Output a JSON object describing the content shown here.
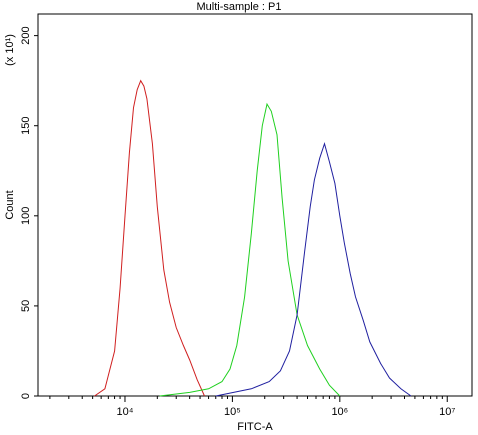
{
  "chart_data": {
    "type": "line",
    "title": "Multi-sample : P1",
    "xlabel": "FITC-A",
    "ylabel": "Count",
    "y_multiplier": "(x 10¹)",
    "xlog": true,
    "xlim": [
      1550,
      17000000
    ],
    "ylim": [
      0,
      212
    ],
    "xticks": [
      {
        "value": 10000,
        "label": "10⁴"
      },
      {
        "value": 100000,
        "label": "10⁵"
      },
      {
        "value": 1000000,
        "label": "10⁶"
      },
      {
        "value": 10000000,
        "label": "10⁷"
      }
    ],
    "yticks": [
      0,
      50,
      100,
      150,
      200
    ],
    "series": [
      {
        "color": "#d02020",
        "x": [
          5200,
          6500,
          8000,
          9000,
          10000,
          11000,
          12000,
          13000,
          14000,
          15000,
          16000,
          18000,
          20000,
          23000,
          26000,
          30000,
          35000,
          40000,
          47000,
          55000
        ],
        "values": [
          0,
          4,
          25,
          60,
          100,
          135,
          160,
          170,
          175,
          172,
          165,
          140,
          105,
          70,
          52,
          38,
          28,
          20,
          9,
          0
        ]
      },
      {
        "color": "#20d020",
        "x": [
          21000,
          40000,
          60000,
          80000,
          95000,
          110000,
          130000,
          150000,
          170000,
          190000,
          210000,
          230000,
          260000,
          290000,
          330000,
          400000,
          500000,
          650000,
          800000,
          1000000
        ],
        "values": [
          0,
          2,
          4,
          8,
          15,
          28,
          55,
          90,
          125,
          150,
          162,
          158,
          145,
          110,
          75,
          45,
          28,
          15,
          6,
          0
        ]
      },
      {
        "color": "#2020a0",
        "x": [
          70000,
          150000,
          220000,
          280000,
          340000,
          400000,
          470000,
          530000,
          580000,
          650000,
          720000,
          800000,
          900000,
          1000000,
          1100000,
          1250000,
          1400000,
          1650000,
          1900000,
          2400000,
          2900000,
          3700000,
          4600000
        ],
        "values": [
          0,
          4,
          8,
          14,
          25,
          45,
          80,
          105,
          120,
          132,
          140,
          130,
          118,
          100,
          85,
          68,
          55,
          42,
          30,
          18,
          10,
          4,
          0
        ]
      }
    ]
  }
}
